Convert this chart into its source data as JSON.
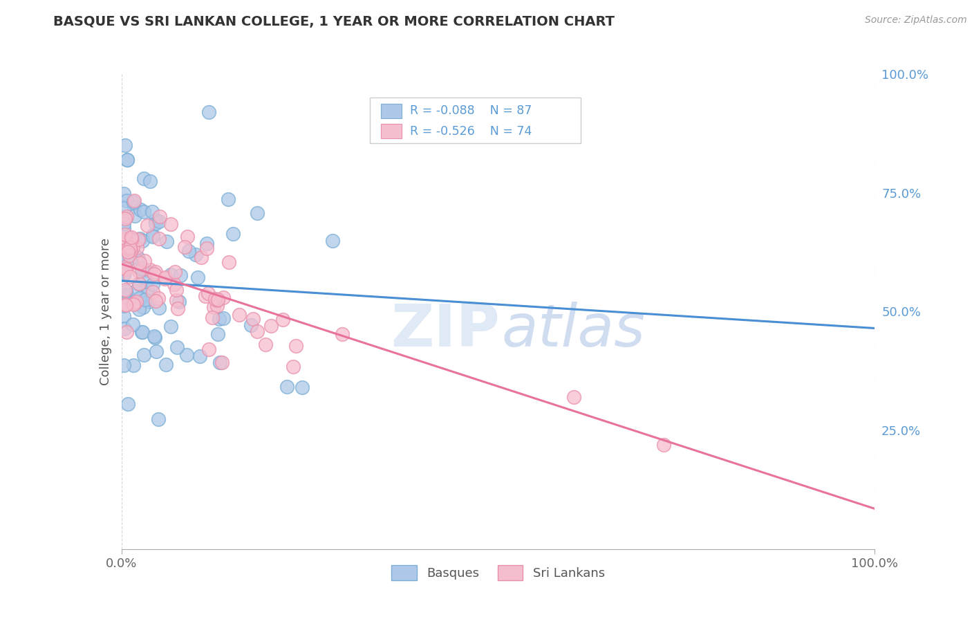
{
  "title": "BASQUE VS SRI LANKAN COLLEGE, 1 YEAR OR MORE CORRELATION CHART",
  "source": "Source: ZipAtlas.com",
  "ylabel": "College, 1 year or more",
  "xlim": [
    0.0,
    1.0
  ],
  "ylim": [
    0.0,
    1.0
  ],
  "basque_R": "-0.088",
  "basque_N": "87",
  "srilankan_R": "-0.526",
  "srilankan_N": "74",
  "basque_color": "#adc8e8",
  "basque_edge": "#7aaed6",
  "srilankan_color": "#f5bece",
  "srilankan_edge": "#e890aa",
  "basque_line_color": "#4a8fd4",
  "srilankan_line_color": "#e8729a",
  "legend_blue_label": "Basques",
  "legend_pink_label": "Sri Lankans",
  "background_color": "#ffffff",
  "grid_color": "#cccccc",
  "title_color": "#333333",
  "axis_label_color": "#555555",
  "right_axis_tick_color": "#5b9bd5",
  "watermark_zip_color": "#dce8f5",
  "watermark_atlas_color": "#c8d8ef",
  "basque_seed": 12,
  "srilankan_seed": 34,
  "basque_line_y0": 0.565,
  "basque_line_y1": 0.465,
  "srilankan_line_y0": 0.6,
  "srilankan_line_y1": 0.085
}
